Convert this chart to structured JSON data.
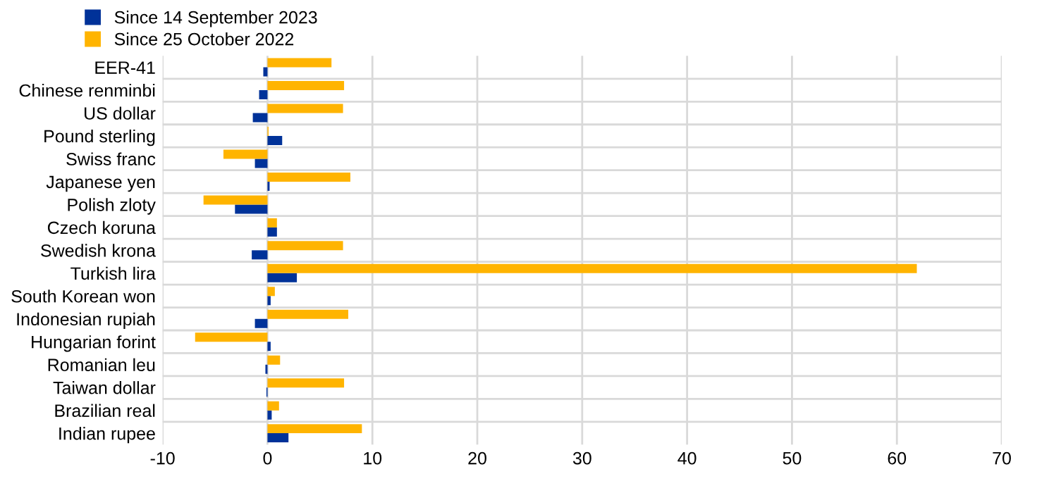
{
  "chart_data": {
    "type": "bar",
    "orientation": "horizontal",
    "categories": [
      "EER-41",
      "Chinese renminbi",
      "US dollar",
      "Pound sterling",
      "Swiss franc",
      "Japanese yen",
      "Polish zloty",
      "Czech koruna",
      "Swedish krona",
      "Turkish lira",
      "South Korean won",
      "Indonesian rupiah",
      "Hungarian forint",
      "Romanian leu",
      "Taiwan dollar",
      "Brazilian real",
      "Indian rupee"
    ],
    "series": [
      {
        "name": "Since 14 September 2023",
        "color": "#003299",
        "values": [
          -0.4,
          -0.8,
          -1.4,
          1.4,
          -1.2,
          0.2,
          -3.1,
          0.9,
          -1.5,
          2.8,
          0.3,
          -1.2,
          0.3,
          -0.2,
          -0.1,
          0.4,
          2.0
        ]
      },
      {
        "name": "Since 25 October 2022",
        "color": "#ffb400",
        "values": [
          6.1,
          7.3,
          7.2,
          0.1,
          -4.2,
          7.9,
          -6.1,
          0.9,
          7.2,
          61.9,
          0.7,
          7.7,
          -6.9,
          1.2,
          7.3,
          1.1,
          9.0
        ]
      }
    ],
    "xlim": [
      -10,
      70
    ],
    "xticks": [
      -10,
      0,
      10,
      20,
      30,
      40,
      50,
      60,
      70
    ],
    "grid": true,
    "legend": "top left"
  }
}
